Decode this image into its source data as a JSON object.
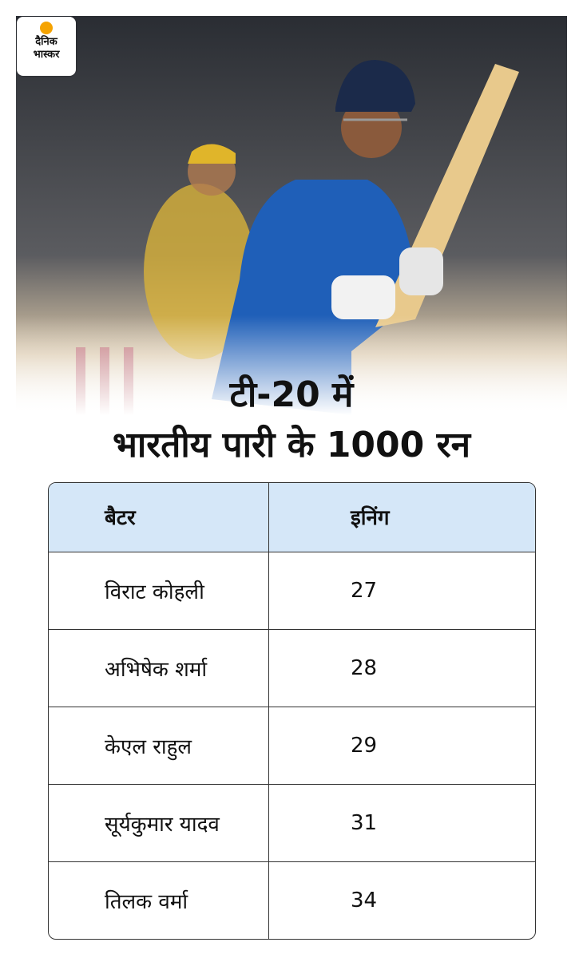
{
  "logo": {
    "line1": "दैनिक",
    "line2": "भास्कर"
  },
  "title": {
    "line1": "टी-20 में",
    "line2": "भारतीय पारी के 1000 रन"
  },
  "table": {
    "header": [
      "बैटर",
      "इनिंग"
    ],
    "rows": [
      [
        "विराट कोहली",
        27
      ],
      [
        "अभिषेक शर्मा",
        28
      ],
      [
        "केएल राहुल",
        29
      ],
      [
        "सूर्यकुमार यादव",
        31
      ],
      [
        "तिलक वर्मा",
        34
      ]
    ]
  }
}
